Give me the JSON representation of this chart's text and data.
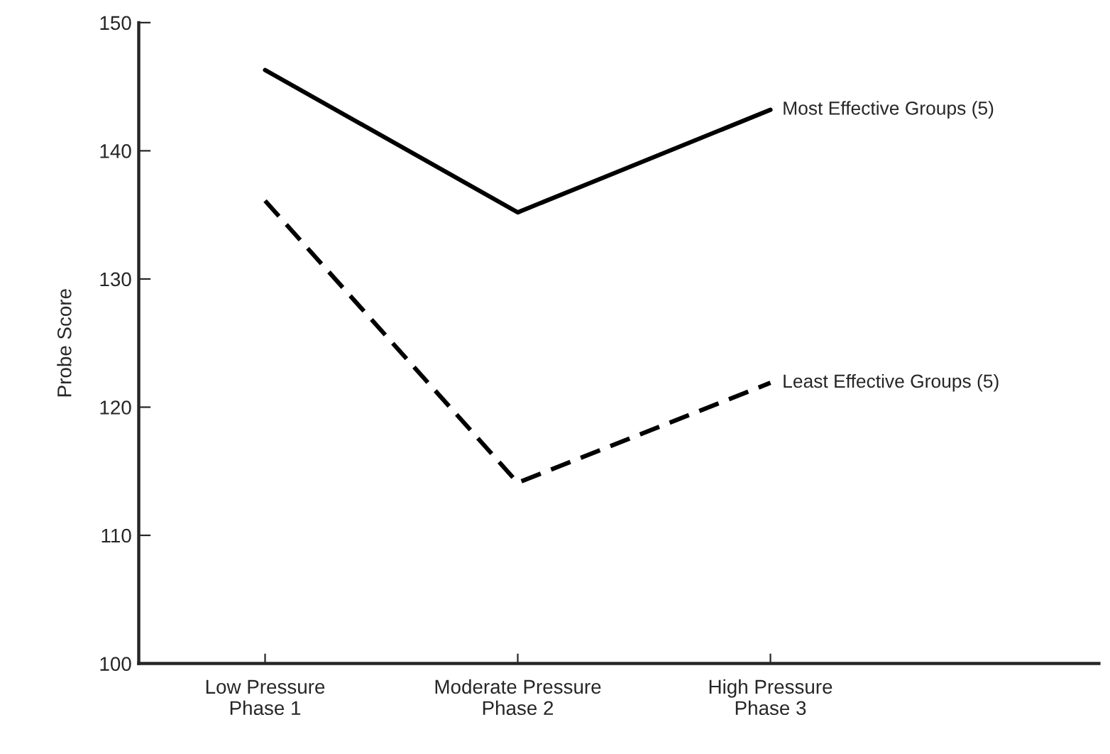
{
  "chart_data": {
    "type": "line",
    "ylabel": "Probe Score",
    "categories": [
      "Low Pressure\nPhase 1",
      "Moderate Pressure\nPhase 2",
      "High Pressure\nPhase 3"
    ],
    "series": [
      {
        "name": "Most Effective Groups (5)",
        "color": "#000000",
        "line_style": "solid",
        "values": [
          146.3,
          135.2,
          143.2
        ]
      },
      {
        "name": "Least Effective Groups (5)",
        "color": "#000000",
        "line_style": "dashed",
        "values": [
          136.1,
          114.1,
          121.9
        ]
      }
    ],
    "ylim": [
      100,
      150
    ],
    "yticks": [
      100,
      110,
      120,
      130,
      140,
      150
    ],
    "grid": false,
    "legend": false,
    "marker": "none"
  }
}
